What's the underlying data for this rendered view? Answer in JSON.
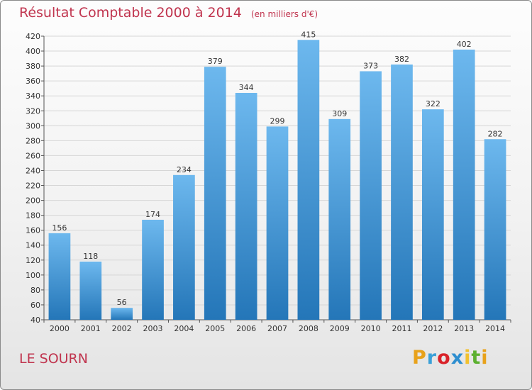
{
  "header": {
    "title": "Résultat Comptable 2000 à 2014",
    "subtitle": "(en milliers d'€)"
  },
  "footer": {
    "commune": "LE SOURN",
    "logo_letters": [
      "P",
      "r",
      "o",
      "x",
      "i",
      "t",
      "i"
    ],
    "logo_colors": [
      "#e8a21b",
      "#3aa0d8",
      "#d9232a",
      "#2f8fd0",
      "#f2c12e",
      "#5cb030",
      "#e8a21b"
    ]
  },
  "chart_data": {
    "type": "bar",
    "title": "Résultat Comptable 2000 à 2014",
    "subtitle": "(en milliers d'€)",
    "categories": [
      "2000",
      "2001",
      "2002",
      "2003",
      "2004",
      "2005",
      "2006",
      "2007",
      "2008",
      "2009",
      "2010",
      "2011",
      "2012",
      "2013",
      "2014"
    ],
    "values": [
      156,
      118,
      56,
      174,
      234,
      379,
      344,
      299,
      415,
      309,
      373,
      382,
      322,
      402,
      282
    ],
    "ylim": [
      40,
      420
    ],
    "yticks": [
      40,
      60,
      80,
      100,
      120,
      140,
      160,
      180,
      200,
      220,
      240,
      260,
      280,
      300,
      320,
      340,
      360,
      380,
      400,
      420
    ],
    "grid": true,
    "bar_color_top": "#6db8ee",
    "bar_color_bottom": "#2476b8",
    "grid_color": "#d6d6d6"
  }
}
